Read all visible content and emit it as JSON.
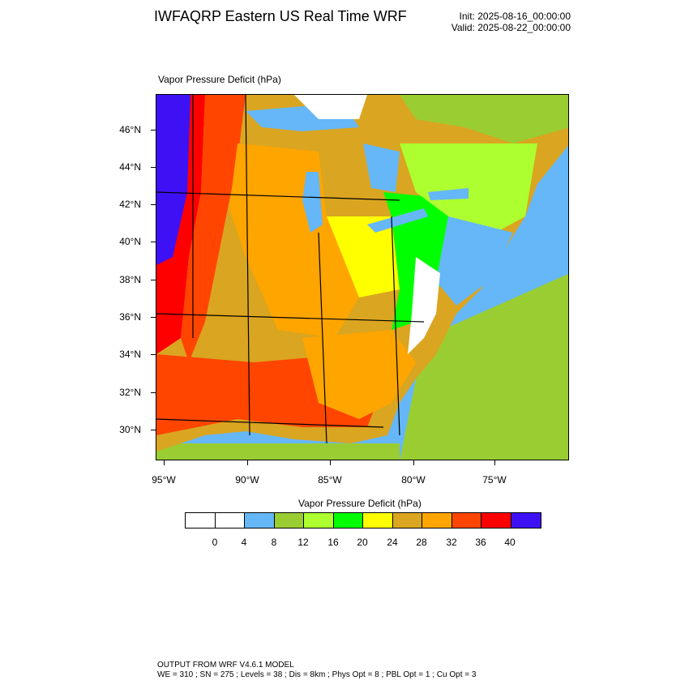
{
  "header": {
    "title": "IWFAQRP Eastern US Real Time WRF",
    "init": "Init: 2025-08-16_00:00:00",
    "valid": "Valid: 2025-08-22_00:00:00"
  },
  "map": {
    "field_label": "Vapor Pressure Deficit   (hPa)",
    "lat_labels": [
      "46°N",
      "44°N",
      "42°N",
      "40°N",
      "38°N",
      "36°N",
      "34°N",
      "32°N",
      "30°N"
    ],
    "lon_labels": [
      "95°W",
      "90°W",
      "85°W",
      "80°W",
      "75°W"
    ],
    "ocean_color": "#65b7f7",
    "lake_color": "#65b7f7"
  },
  "colorbar": {
    "title": "Vapor Pressure Deficit  (hPa)",
    "labels": [
      "0",
      "4",
      "8",
      "12",
      "16",
      "20",
      "24",
      "28",
      "32",
      "36",
      "40"
    ],
    "colors": [
      "#ffffff",
      "#ffffff",
      "#65b7f7",
      "#9acd32",
      "#adff2f",
      "#00ff00",
      "#ffff00",
      "#daa520",
      "#ffa500",
      "#ff4500",
      "#ff0000",
      "#3e11f5"
    ]
  },
  "footer": {
    "line1": "OUTPUT FROM WRF V4.6.1 MODEL",
    "line2": "WE = 310 ; SN = 275 ; Levels = 38 ; Dis = 8km ; Phys Opt = 8 ; PBL Opt = 1 ; Cu Opt = 3"
  }
}
